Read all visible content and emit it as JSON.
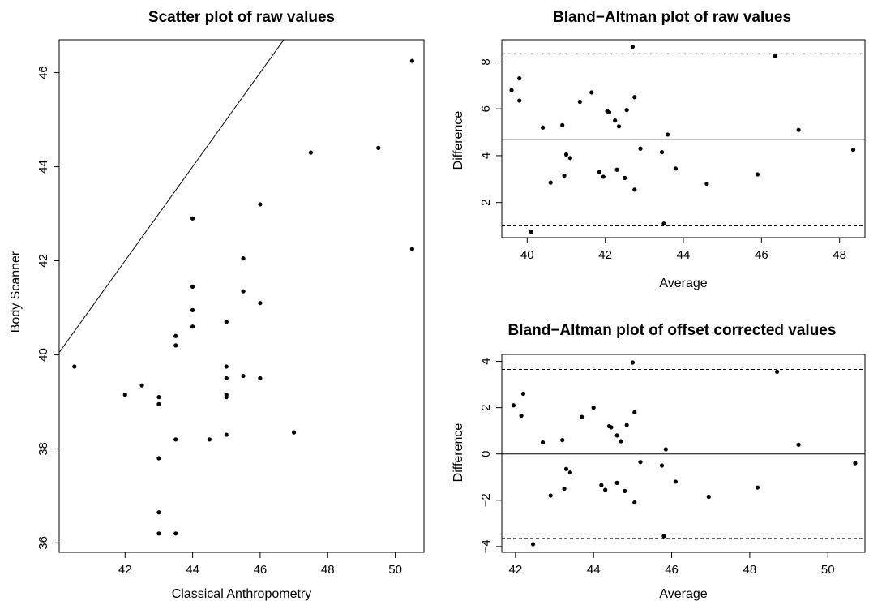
{
  "chart_data": [
    {
      "type": "scatter",
      "title": "Scatter plot of raw values",
      "xlabel": "Classical Anthropometry",
      "ylabel": "Body Scanner",
      "xlim": [
        40.05,
        50.85
      ],
      "ylim": [
        35.8,
        46.7
      ],
      "xticks": [
        42,
        44,
        46,
        48,
        50
      ],
      "yticks": [
        36,
        38,
        40,
        42,
        44,
        46
      ],
      "reference_line": {
        "slope": 1,
        "intercept": 0
      },
      "points": [
        [
          40.5,
          39.75
        ],
        [
          42.0,
          39.15
        ],
        [
          42.5,
          39.35
        ],
        [
          43.0,
          39.1
        ],
        [
          43.0,
          38.95
        ],
        [
          43.0,
          37.8
        ],
        [
          43.0,
          36.65
        ],
        [
          43.0,
          36.2
        ],
        [
          43.5,
          40.4
        ],
        [
          43.5,
          40.2
        ],
        [
          43.5,
          38.2
        ],
        [
          43.5,
          36.2
        ],
        [
          44.0,
          42.9
        ],
        [
          44.0,
          41.45
        ],
        [
          44.0,
          40.95
        ],
        [
          44.0,
          40.6
        ],
        [
          44.5,
          38.2
        ],
        [
          45.0,
          40.7
        ],
        [
          45.0,
          39.75
        ],
        [
          45.0,
          39.5
        ],
        [
          45.0,
          39.15
        ],
        [
          45.0,
          39.1
        ],
        [
          45.0,
          38.3
        ],
        [
          45.5,
          42.05
        ],
        [
          45.5,
          41.35
        ],
        [
          45.5,
          39.55
        ],
        [
          46.0,
          43.2
        ],
        [
          46.0,
          41.1
        ],
        [
          46.0,
          39.5
        ],
        [
          47.0,
          38.35
        ],
        [
          47.5,
          44.3
        ],
        [
          49.5,
          44.4
        ],
        [
          50.5,
          46.25
        ],
        [
          50.5,
          42.25
        ]
      ]
    },
    {
      "type": "scatter",
      "title": "Bland−Altman plot of raw values",
      "xlabel": "Average",
      "ylabel": "Difference",
      "xlim": [
        39.35,
        48.65
      ],
      "ylim": [
        0.5,
        8.95
      ],
      "xticks": [
        40,
        42,
        44,
        46,
        48
      ],
      "yticks": [
        2,
        4,
        6,
        8
      ],
      "mean_line": 4.68,
      "limit_lines": [
        1.0,
        8.35
      ],
      "points": [
        [
          39.6,
          6.8
        ],
        [
          39.8,
          7.3
        ],
        [
          39.8,
          6.35
        ],
        [
          40.1,
          0.75
        ],
        [
          40.4,
          5.2
        ],
        [
          40.6,
          2.85
        ],
        [
          40.9,
          5.3
        ],
        [
          40.95,
          3.15
        ],
        [
          41.0,
          4.05
        ],
        [
          41.1,
          3.9
        ],
        [
          41.35,
          6.3
        ],
        [
          41.65,
          6.7
        ],
        [
          41.85,
          3.3
        ],
        [
          41.95,
          3.1
        ],
        [
          42.05,
          5.9
        ],
        [
          42.1,
          5.85
        ],
        [
          42.25,
          5.5
        ],
        [
          42.3,
          3.4
        ],
        [
          42.35,
          5.25
        ],
        [
          42.5,
          3.05
        ],
        [
          42.55,
          5.95
        ],
        [
          42.7,
          8.65
        ],
        [
          42.75,
          2.55
        ],
        [
          42.75,
          6.5
        ],
        [
          42.9,
          4.3
        ],
        [
          43.45,
          4.15
        ],
        [
          43.5,
          1.1
        ],
        [
          43.6,
          4.9
        ],
        [
          43.8,
          3.45
        ],
        [
          44.6,
          2.8
        ],
        [
          45.9,
          3.2
        ],
        [
          46.35,
          8.25
        ],
        [
          46.95,
          5.1
        ],
        [
          48.35,
          4.25
        ]
      ]
    },
    {
      "type": "scatter",
      "title": "Bland−Altman plot of offset corrected values",
      "xlabel": "Average",
      "ylabel": "Difference",
      "xlim": [
        41.65,
        50.95
      ],
      "ylim": [
        -4.25,
        4.3
      ],
      "xticks": [
        42,
        44,
        46,
        48,
        50
      ],
      "yticks": [
        -4,
        -2,
        0,
        2,
        4
      ],
      "mean_line": 0,
      "limit_lines": [
        -3.65,
        3.65
      ],
      "points": [
        [
          41.95,
          2.1
        ],
        [
          42.15,
          1.65
        ],
        [
          42.2,
          2.6
        ],
        [
          42.45,
          -3.9
        ],
        [
          42.7,
          0.5
        ],
        [
          42.9,
          -1.8
        ],
        [
          43.2,
          0.6
        ],
        [
          43.25,
          -1.5
        ],
        [
          43.3,
          -0.65
        ],
        [
          43.4,
          -0.8
        ],
        [
          43.7,
          1.6
        ],
        [
          44.0,
          2.0
        ],
        [
          44.2,
          -1.35
        ],
        [
          44.3,
          -1.55
        ],
        [
          44.4,
          1.2
        ],
        [
          44.45,
          1.15
        ],
        [
          44.6,
          0.8
        ],
        [
          44.6,
          -1.25
        ],
        [
          44.7,
          0.55
        ],
        [
          44.8,
          -1.6
        ],
        [
          44.85,
          1.25
        ],
        [
          45.0,
          3.95
        ],
        [
          45.05,
          -2.1
        ],
        [
          45.05,
          1.8
        ],
        [
          45.2,
          -0.35
        ],
        [
          45.75,
          -0.5
        ],
        [
          45.8,
          -3.55
        ],
        [
          45.85,
          0.2
        ],
        [
          46.1,
          -1.2
        ],
        [
          46.95,
          -1.85
        ],
        [
          48.2,
          -1.45
        ],
        [
          48.7,
          3.55
        ],
        [
          49.25,
          0.4
        ],
        [
          50.7,
          -0.4
        ]
      ]
    }
  ]
}
